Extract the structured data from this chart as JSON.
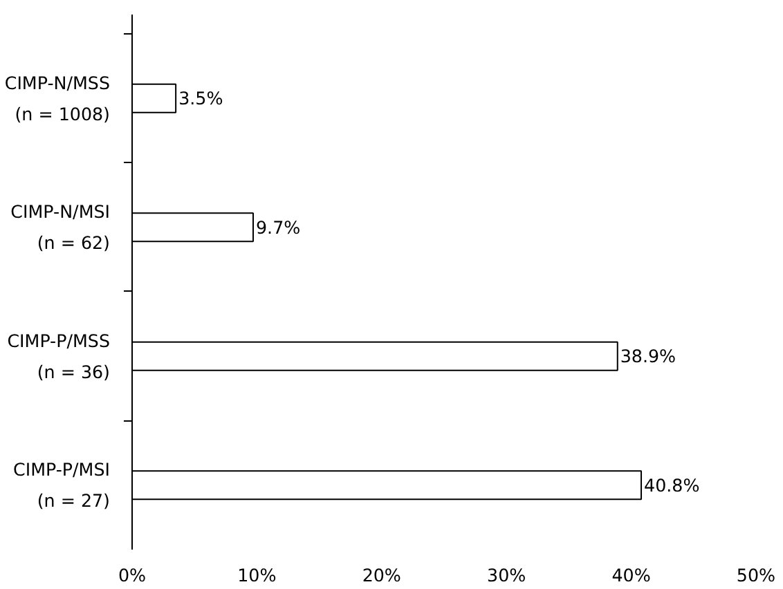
{
  "chart_data": {
    "type": "bar",
    "orientation": "horizontal",
    "categories": [
      "CIMP-N/MSS\n(n = 1008)",
      "CIMP-N/MSI\n(n = 62)",
      "CIMP-P/MSS\n(n = 36)",
      "CIMP-P/MSI\n(n = 27)"
    ],
    "values": [
      3.5,
      9.7,
      38.9,
      40.8
    ],
    "value_labels": [
      "3.5%",
      "9.7%",
      "38.9%",
      "40.8%"
    ],
    "color": "#ffffff",
    "xlim": [
      0,
      50
    ],
    "xticks": [
      {
        "value": 0,
        "label": "0%"
      },
      {
        "value": 10,
        "label": "10%"
      },
      {
        "value": 20,
        "label": "20%"
      },
      {
        "value": 30,
        "label": "30%"
      },
      {
        "value": 40,
        "label": "40%"
      },
      {
        "value": 50,
        "label": "50%"
      }
    ],
    "grid": false
  }
}
